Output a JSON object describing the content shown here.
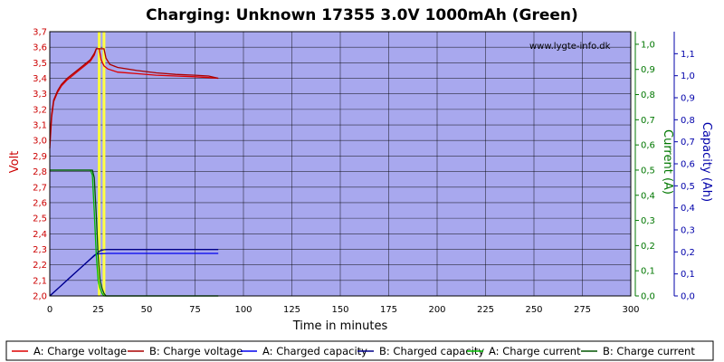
{
  "chart_data": {
    "type": "line",
    "title": "Charging: Unknown 17355 3.0V 1000mAh (Green)",
    "watermark": "www.lygte-info.dk",
    "xlabel": "Time in minutes",
    "x_ticks": [
      0,
      25,
      50,
      75,
      100,
      125,
      150,
      175,
      200,
      225,
      250,
      275,
      300
    ],
    "xlim": [
      0,
      300
    ],
    "y_left": {
      "label": "Volt",
      "color": "#cc0000",
      "ylim": [
        2.0,
        3.7
      ],
      "ticks": [
        2.0,
        2.1,
        2.2,
        2.3,
        2.4,
        2.5,
        2.6,
        2.7,
        2.8,
        2.9,
        3.0,
        3.1,
        3.2,
        3.3,
        3.4,
        3.5,
        3.6,
        3.7
      ],
      "tick_labels": [
        "2,0",
        "2,1",
        "2,2",
        "2,3",
        "2,4",
        "2,5",
        "2,6",
        "2,7",
        "2,8",
        "2,9",
        "3,0",
        "3,1",
        "3,2",
        "3,3",
        "3,4",
        "3,5",
        "3,6",
        "3,7"
      ]
    },
    "y_current": {
      "label": "Current (A)",
      "color": "#007700",
      "ylim": [
        0.0,
        1.05
      ],
      "ticks": [
        0.0,
        0.1,
        0.2,
        0.3,
        0.4,
        0.5,
        0.6,
        0.7,
        0.8,
        0.9,
        1.0
      ],
      "tick_labels": [
        "0,0",
        "0,1",
        "0,2",
        "0,3",
        "0,4",
        "0,5",
        "0,6",
        "0,7",
        "0,8",
        "0,9",
        "1,0"
      ]
    },
    "y_capacity": {
      "label": "Capacity (Ah)",
      "color": "#0000aa",
      "ylim": [
        0.0,
        1.2
      ],
      "ticks": [
        0.0,
        0.1,
        0.2,
        0.3,
        0.4,
        0.5,
        0.6,
        0.7,
        0.8,
        0.9,
        1.0,
        1.1
      ],
      "tick_labels": [
        "0,0",
        "0,1",
        "0,2",
        "0,3",
        "0,4",
        "0,5",
        "0,6",
        "0,7",
        "0,8",
        "0,9",
        "1,0",
        "1,1"
      ]
    },
    "markers": [
      {
        "x": 25.5,
        "color": "#ffff44"
      },
      {
        "x": 28.0,
        "color": "#ffff44"
      }
    ],
    "series": [
      {
        "name": "A: Charge voltage",
        "axis": "volt",
        "color": "#dd0000",
        "points": [
          [
            0,
            2.95
          ],
          [
            1,
            3.15
          ],
          [
            2,
            3.25
          ],
          [
            4,
            3.31
          ],
          [
            6,
            3.35
          ],
          [
            9,
            3.39
          ],
          [
            12,
            3.42
          ],
          [
            15,
            3.45
          ],
          [
            18,
            3.48
          ],
          [
            21,
            3.51
          ],
          [
            23,
            3.55
          ],
          [
            24,
            3.59
          ],
          [
            25.5,
            3.59
          ],
          [
            26.5,
            3.52
          ],
          [
            28,
            3.48
          ],
          [
            30,
            3.46
          ],
          [
            35,
            3.44
          ],
          [
            45,
            3.43
          ],
          [
            55,
            3.42
          ],
          [
            65,
            3.415
          ],
          [
            75,
            3.41
          ],
          [
            82,
            3.405
          ],
          [
            87,
            3.4
          ]
        ]
      },
      {
        "name": "B: Charge voltage",
        "axis": "volt",
        "color": "#aa0000",
        "points": [
          [
            0,
            3.0
          ],
          [
            1,
            3.17
          ],
          [
            2,
            3.26
          ],
          [
            4,
            3.32
          ],
          [
            6,
            3.36
          ],
          [
            9,
            3.4
          ],
          [
            12,
            3.43
          ],
          [
            15,
            3.46
          ],
          [
            18,
            3.49
          ],
          [
            21,
            3.52
          ],
          [
            23,
            3.56
          ],
          [
            24,
            3.59
          ],
          [
            28,
            3.59
          ],
          [
            29,
            3.53
          ],
          [
            31,
            3.49
          ],
          [
            35,
            3.47
          ],
          [
            45,
            3.45
          ],
          [
            55,
            3.435
          ],
          [
            65,
            3.425
          ],
          [
            75,
            3.42
          ],
          [
            82,
            3.415
          ],
          [
            87,
            3.4
          ]
        ]
      },
      {
        "name": "A: Charged capacity",
        "axis": "capacity",
        "color": "#0000ee",
        "points": [
          [
            0,
            0.0
          ],
          [
            5,
            0.04
          ],
          [
            10,
            0.08
          ],
          [
            15,
            0.12
          ],
          [
            20,
            0.16
          ],
          [
            23,
            0.185
          ],
          [
            24,
            0.19
          ],
          [
            26,
            0.192
          ],
          [
            30,
            0.193
          ],
          [
            50,
            0.193
          ],
          [
            87,
            0.193
          ]
        ]
      },
      {
        "name": "B: Charged capacity",
        "axis": "capacity",
        "color": "#000088",
        "points": [
          [
            0,
            0.0
          ],
          [
            5,
            0.04
          ],
          [
            10,
            0.08
          ],
          [
            15,
            0.12
          ],
          [
            20,
            0.16
          ],
          [
            24,
            0.19
          ],
          [
            26,
            0.205
          ],
          [
            28,
            0.21
          ],
          [
            30,
            0.211
          ],
          [
            50,
            0.211
          ],
          [
            87,
            0.211
          ]
        ]
      },
      {
        "name": "A: Charge current",
        "axis": "current",
        "color": "#00bb00",
        "points": [
          [
            0,
            0.5
          ],
          [
            21,
            0.5
          ],
          [
            22,
            0.48
          ],
          [
            23,
            0.33
          ],
          [
            24,
            0.16
          ],
          [
            25,
            0.06
          ],
          [
            26,
            0.03
          ],
          [
            27,
            0.01
          ],
          [
            28,
            0.0
          ],
          [
            87,
            0.0
          ]
        ]
      },
      {
        "name": "B: Charge current",
        "axis": "current",
        "color": "#005500",
        "points": [
          [
            0,
            0.5
          ],
          [
            22,
            0.5
          ],
          [
            23,
            0.47
          ],
          [
            24,
            0.32
          ],
          [
            25,
            0.16
          ],
          [
            26,
            0.06
          ],
          [
            27,
            0.03
          ],
          [
            28,
            0.01
          ],
          [
            29,
            0.0
          ],
          [
            87,
            0.0
          ]
        ]
      }
    ],
    "grid": true,
    "legend": "bottom"
  }
}
